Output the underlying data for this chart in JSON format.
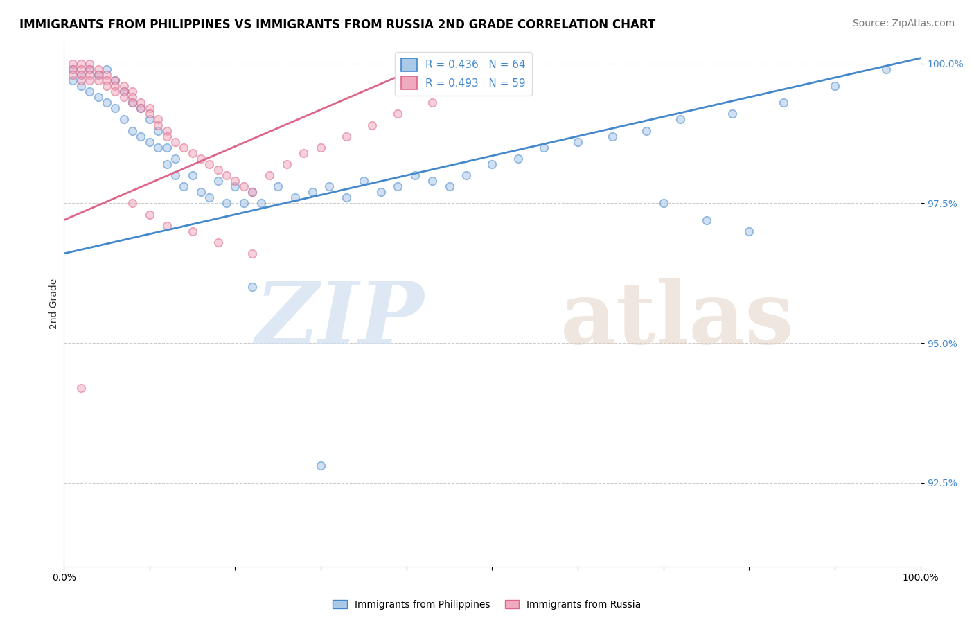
{
  "title": "IMMIGRANTS FROM PHILIPPINES VS IMMIGRANTS FROM RUSSIA 2ND GRADE CORRELATION CHART",
  "source": "Source: ZipAtlas.com",
  "ylabel": "2nd Grade",
  "legend_blue_label": "Immigrants from Philippines",
  "legend_pink_label": "Immigrants from Russia",
  "R_blue": 0.436,
  "N_blue": 64,
  "R_pink": 0.493,
  "N_pink": 59,
  "xlim": [
    0.0,
    1.0
  ],
  "ylim": [
    0.91,
    1.004
  ],
  "yticks": [
    0.925,
    0.95,
    0.975,
    1.0
  ],
  "yticklabels": [
    "92.5%",
    "95.0%",
    "97.5%",
    "100.0%"
  ],
  "xtick_positions": [
    0.0,
    0.1,
    0.2,
    0.3,
    0.4,
    0.5,
    0.6,
    0.7,
    0.8,
    0.9,
    1.0
  ],
  "blue_color": "#aac8e8",
  "pink_color": "#f0aabf",
  "blue_line_color": "#4488cc",
  "pink_line_color": "#dd6688",
  "blue_trend_x": [
    0.0,
    1.0
  ],
  "blue_trend_y": [
    0.966,
    1.001
  ],
  "pink_trend_x": [
    0.0,
    0.44
  ],
  "pink_trend_y": [
    0.972,
    1.001
  ],
  "background_color": "#ffffff",
  "grid_color": "#cccccc",
  "watermark_color": "#d0dff0",
  "title_fontsize": 12,
  "source_fontsize": 10,
  "tick_fontsize": 10,
  "legend_fontsize": 11,
  "ylabel_fontsize": 10,
  "marker_size": 70,
  "marker_alpha": 0.55,
  "marker_edge_width": 1.2,
  "blue_scatter_x": [
    0.01,
    0.01,
    0.02,
    0.02,
    0.03,
    0.03,
    0.04,
    0.04,
    0.05,
    0.05,
    0.06,
    0.06,
    0.07,
    0.07,
    0.08,
    0.08,
    0.09,
    0.09,
    0.1,
    0.1,
    0.11,
    0.11,
    0.12,
    0.12,
    0.13,
    0.13,
    0.14,
    0.15,
    0.16,
    0.17,
    0.18,
    0.19,
    0.2,
    0.21,
    0.22,
    0.23,
    0.25,
    0.27,
    0.29,
    0.31,
    0.33,
    0.35,
    0.37,
    0.39,
    0.41,
    0.43,
    0.45,
    0.47,
    0.5,
    0.53,
    0.56,
    0.6,
    0.64,
    0.68,
    0.72,
    0.78,
    0.84,
    0.9,
    0.96,
    0.7,
    0.75,
    0.8,
    0.22,
    0.3
  ],
  "blue_scatter_y": [
    0.999,
    0.997,
    0.998,
    0.996,
    0.999,
    0.995,
    0.998,
    0.994,
    0.999,
    0.993,
    0.997,
    0.992,
    0.995,
    0.99,
    0.993,
    0.988,
    0.992,
    0.987,
    0.99,
    0.986,
    0.988,
    0.985,
    0.985,
    0.982,
    0.983,
    0.98,
    0.978,
    0.98,
    0.977,
    0.976,
    0.979,
    0.975,
    0.978,
    0.975,
    0.977,
    0.975,
    0.978,
    0.976,
    0.977,
    0.978,
    0.976,
    0.979,
    0.977,
    0.978,
    0.98,
    0.979,
    0.978,
    0.98,
    0.982,
    0.983,
    0.985,
    0.986,
    0.987,
    0.988,
    0.99,
    0.991,
    0.993,
    0.996,
    0.999,
    0.975,
    0.972,
    0.97,
    0.96,
    0.928
  ],
  "pink_scatter_x": [
    0.01,
    0.01,
    0.01,
    0.02,
    0.02,
    0.02,
    0.02,
    0.03,
    0.03,
    0.03,
    0.03,
    0.04,
    0.04,
    0.04,
    0.05,
    0.05,
    0.05,
    0.06,
    0.06,
    0.06,
    0.07,
    0.07,
    0.07,
    0.08,
    0.08,
    0.08,
    0.09,
    0.09,
    0.1,
    0.1,
    0.11,
    0.11,
    0.12,
    0.12,
    0.13,
    0.14,
    0.15,
    0.16,
    0.17,
    0.18,
    0.19,
    0.2,
    0.21,
    0.22,
    0.24,
    0.26,
    0.28,
    0.3,
    0.33,
    0.36,
    0.39,
    0.43,
    0.08,
    0.1,
    0.12,
    0.15,
    0.18,
    0.22,
    0.02
  ],
  "pink_scatter_y": [
    1.0,
    0.999,
    0.998,
    1.0,
    0.999,
    0.998,
    0.997,
    1.0,
    0.999,
    0.998,
    0.997,
    0.999,
    0.998,
    0.997,
    0.998,
    0.997,
    0.996,
    0.997,
    0.996,
    0.995,
    0.996,
    0.995,
    0.994,
    0.995,
    0.994,
    0.993,
    0.993,
    0.992,
    0.992,
    0.991,
    0.99,
    0.989,
    0.988,
    0.987,
    0.986,
    0.985,
    0.984,
    0.983,
    0.982,
    0.981,
    0.98,
    0.979,
    0.978,
    0.977,
    0.98,
    0.982,
    0.984,
    0.985,
    0.987,
    0.989,
    0.991,
    0.993,
    0.975,
    0.973,
    0.971,
    0.97,
    0.968,
    0.966,
    0.942
  ]
}
